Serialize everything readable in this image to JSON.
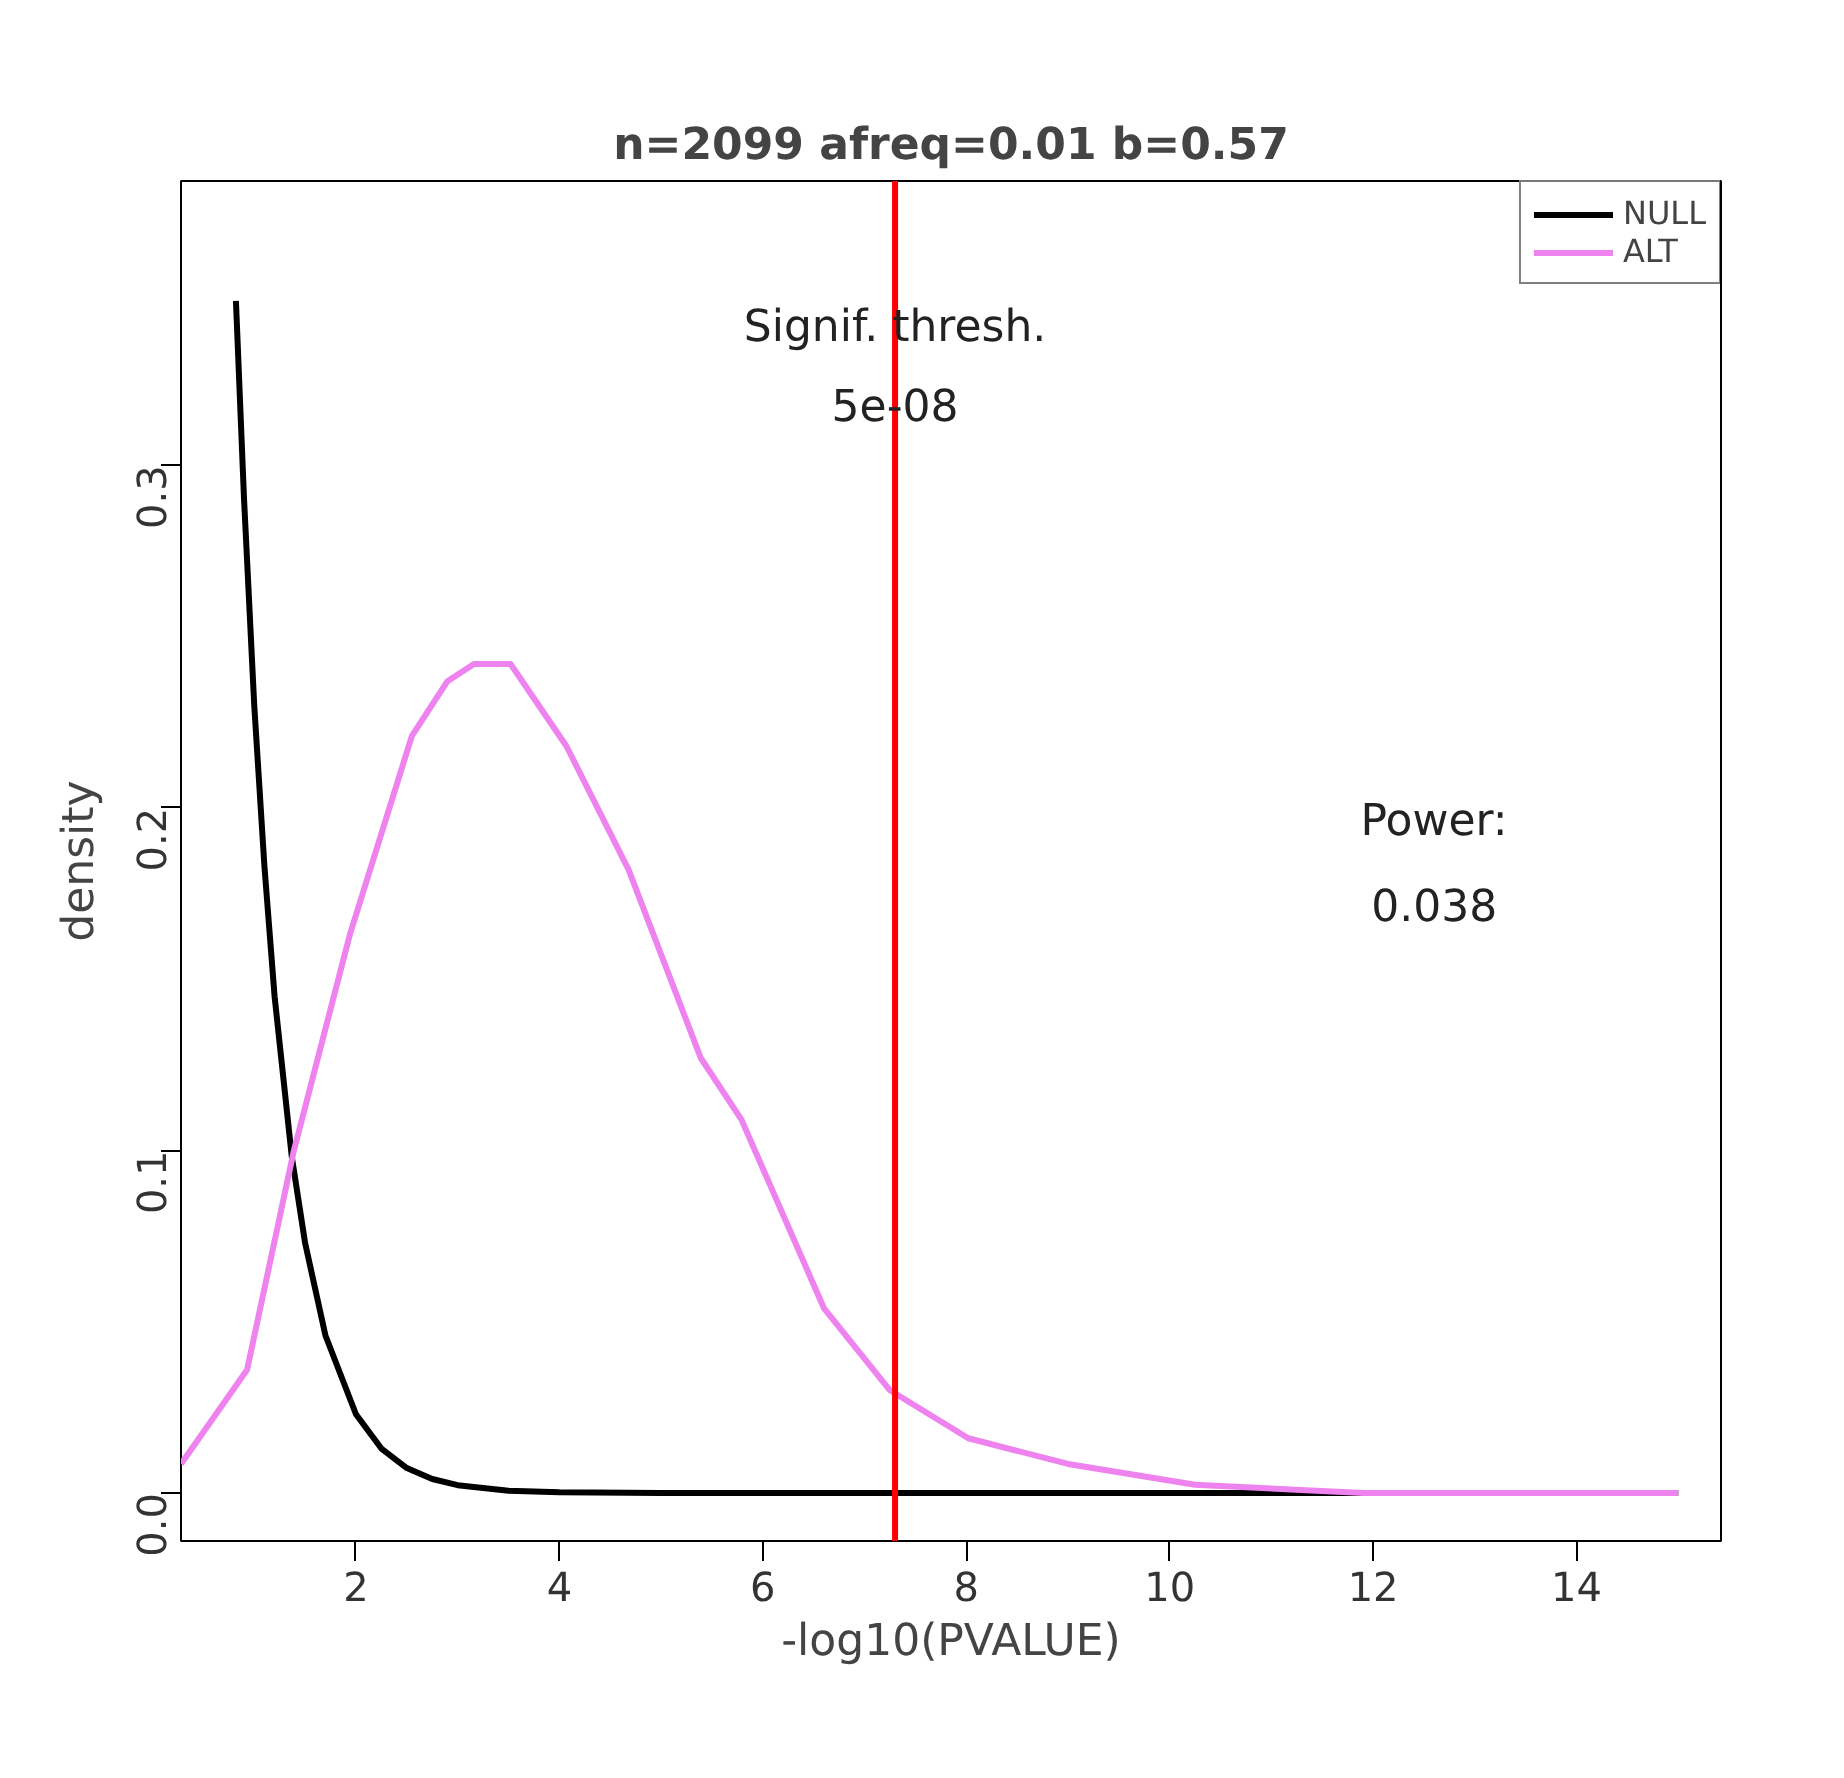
{
  "chart_data": {
    "type": "line",
    "title": "n=2099 afreq=0.01 b=0.57",
    "xlabel": "-log10(PVALUE)",
    "ylabel": "density",
    "series": [
      {
        "name": "NULL",
        "color": "#000000",
        "x": [
          0.82,
          0.9,
          1.0,
          1.1,
          1.2,
          1.37,
          1.5,
          1.7,
          2.0,
          2.25,
          2.5,
          2.75,
          3.0,
          3.5,
          4.0,
          5.0,
          7.0,
          10.0,
          15.0
        ],
        "values": [
          0.348,
          0.29,
          0.23,
          0.183,
          0.145,
          0.098,
          0.073,
          0.046,
          0.023,
          0.013,
          0.0073,
          0.0041,
          0.0023,
          0.0007,
          0.0002,
          0.0,
          0.0,
          0.0,
          0.0
        ]
      },
      {
        "name": "ALT",
        "color": "#ee82ee",
        "x": [
          0.28,
          0.93,
          1.39,
          1.94,
          2.55,
          2.9,
          3.16,
          3.52,
          4.07,
          4.68,
          5.39,
          5.79,
          6.6,
          7.25,
          8.02,
          9.0,
          10.25,
          11.9,
          15.0
        ],
        "values": [
          0.0085,
          0.036,
          0.1,
          0.163,
          0.221,
          0.237,
          0.242,
          0.242,
          0.218,
          0.182,
          0.127,
          0.109,
          0.054,
          0.03,
          0.016,
          0.0085,
          0.0024,
          0.0,
          0.0
        ]
      }
    ],
    "xlim": [
      0.28,
      15.42
    ],
    "ylim": [
      -0.014,
      0.383
    ],
    "xticks": [
      2,
      4,
      6,
      8,
      10,
      12,
      14
    ],
    "yticks": [
      {
        "value": 0,
        "label": "0.0"
      },
      {
        "value": 0.1,
        "label": "0.1"
      },
      {
        "value": 0.2,
        "label": "0.2"
      },
      {
        "value": 0.3,
        "label": "0.3"
      }
    ],
    "ref_lines": [
      {
        "axis": "x",
        "value": 7.3,
        "color": "#ff0000"
      }
    ],
    "annotations": [
      {
        "text": "Signif. thresh.",
        "x": 7.3,
        "y": 0.34
      },
      {
        "text": "5e-08",
        "x": 7.3,
        "y": 0.318
      },
      "Power:",
      "0.038"
    ],
    "legend": "top right",
    "grid": false,
    "marker": "none",
    "line_style": "solid"
  }
}
